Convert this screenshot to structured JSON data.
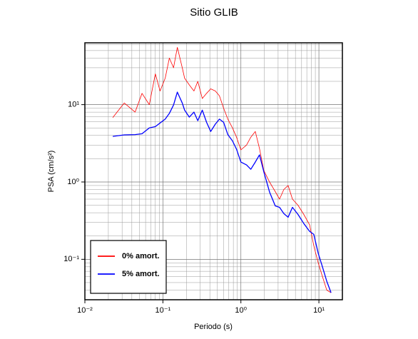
{
  "chart_data": {
    "type": "line",
    "title": "Sitio GLIB",
    "xlabel": "Periodo (s)",
    "ylabel": "PSA (cm/s²)",
    "xscale": "log",
    "yscale": "log",
    "grid": true,
    "legend": "lower left",
    "xlim": [
      0.01,
      20
    ],
    "ylim": [
      0.03,
      63
    ],
    "xticks": [
      {
        "value": 0.01,
        "label": "10⁻²"
      },
      {
        "value": 0.1,
        "label": "10⁻¹"
      },
      {
        "value": 1,
        "label": "10⁰"
      },
      {
        "value": 10,
        "label": "10¹"
      }
    ],
    "yticks": [
      {
        "value": 0.1,
        "label": "10⁻¹"
      },
      {
        "value": 1,
        "label": "10⁰"
      },
      {
        "value": 10,
        "label": "10¹"
      }
    ],
    "xminorticks": [
      0.02,
      0.03,
      0.04,
      0.05,
      0.06,
      0.07,
      0.08,
      0.09,
      0.2,
      0.3,
      0.4,
      0.5,
      0.6,
      0.7,
      0.8,
      0.9,
      2,
      3,
      4,
      5,
      6,
      7,
      8,
      9,
      20
    ],
    "yminorticks": [
      0.04,
      0.05,
      0.06,
      0.07,
      0.08,
      0.09,
      0.2,
      0.3,
      0.4,
      0.5,
      0.6,
      0.7,
      0.8,
      0.9,
      2,
      3,
      4,
      5,
      6,
      7,
      8,
      9,
      20,
      30,
      40,
      50,
      60
    ],
    "x": [
      0.0228,
      0.032,
      0.044,
      0.054,
      0.067,
      0.08,
      0.092,
      0.107,
      0.121,
      0.137,
      0.153,
      0.177,
      0.19,
      0.218,
      0.25,
      0.28,
      0.32,
      0.363,
      0.41,
      0.47,
      0.53,
      0.6,
      0.68,
      0.78,
      0.88,
      1.0,
      1.18,
      1.34,
      1.53,
      1.73,
      1.97,
      2.33,
      2.76,
      3.13,
      3.55,
      4.03,
      4.58,
      5.4,
      6.4,
      7.6,
      8.6,
      9.8,
      11.1,
      12.6,
      14.3
    ],
    "series": [
      {
        "name": "0% amort.",
        "color": "#ff0000",
        "width": 0.8,
        "values": [
          6.8,
          10.5,
          8.0,
          14,
          10,
          25,
          15,
          22,
          40,
          30,
          55,
          30,
          22,
          18,
          15,
          20,
          12,
          14,
          16,
          15,
          13,
          9,
          6.5,
          5.0,
          3.8,
          2.6,
          3.0,
          3.8,
          4.5,
          2.7,
          1.4,
          1.0,
          0.75,
          0.6,
          0.8,
          0.9,
          0.6,
          0.5,
          0.38,
          0.28,
          0.15,
          0.09,
          0.06,
          0.04,
          0.037
        ]
      },
      {
        "name": "5% amort.",
        "color": "#0000ff",
        "width": 1.3,
        "values": [
          3.89,
          4.06,
          4.1,
          4.2,
          5.0,
          5.2,
          5.8,
          6.5,
          7.7,
          9.9,
          14.5,
          10.5,
          8.5,
          6.9,
          8.0,
          6.2,
          8.5,
          5.9,
          4.5,
          5.6,
          6.5,
          5.9,
          4.1,
          3.4,
          2.65,
          1.81,
          1.66,
          1.46,
          1.81,
          2.24,
          1.35,
          0.74,
          0.49,
          0.47,
          0.39,
          0.35,
          0.47,
          0.38,
          0.29,
          0.23,
          0.21,
          0.12,
          0.08,
          0.052,
          0.037
        ]
      }
    ]
  }
}
